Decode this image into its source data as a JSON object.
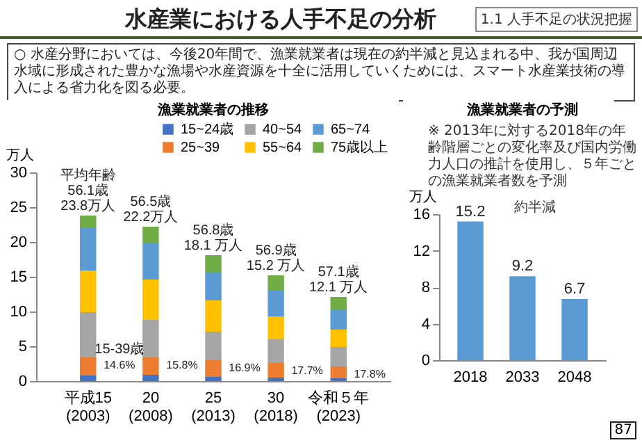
{
  "chart_data": [
    {
      "type": "other",
      "title": "水産業における人手不足の分析",
      "subtitle": "○ 水産分野においては、今後20年間で、漁業就業者は現在の約半減と見込まれる中、我が国周辺水域に形成された豊かな漁場や水産資源を十全に活用していくためには、スマート水産業技術の導入による省力化を図る必要。",
      "annotations": [
        "1.1 人手不足の状況把握",
        "87"
      ]
    },
    {
      "type": "bar",
      "title": "漁業就業者の推移",
      "ylabel": "万人",
      "stacked": true,
      "legend": "top right",
      "categories": [
        "平成15 (2003)",
        "20 (2008)",
        "25 (2013)",
        "30 (2018)",
        "令和５年 (2023)"
      ],
      "series": [
        {
          "name": "15~24歳",
          "color": "#4472c4",
          "values": [
            0.8,
            0.9,
            0.6,
            0.5,
            0.4
          ]
        },
        {
          "name": "25~39",
          "color": "#ed7d31",
          "values": [
            2.6,
            2.5,
            2.4,
            2.1,
            1.7
          ]
        },
        {
          "name": "40~54",
          "color": "#a5a5a5",
          "values": [
            6.5,
            5.4,
            4.1,
            3.4,
            2.8
          ]
        },
        {
          "name": "55~64",
          "color": "#ffc000",
          "values": [
            6.0,
            5.8,
            4.5,
            3.3,
            2.5
          ]
        },
        {
          "name": "65~74",
          "color": "#5b9bd5",
          "values": [
            6.2,
            5.3,
            4.1,
            3.8,
            2.9
          ]
        },
        {
          "name": "75歳以上",
          "color": "#70ad47",
          "values": [
            1.7,
            2.3,
            2.4,
            2.1,
            1.8
          ]
        }
      ],
      "ylim": [
        0,
        30
      ],
      "yticks": [
        0,
        5,
        10,
        15,
        20,
        25,
        30
      ],
      "annotations": [
        {
          "text": "平均年齢\n56.1歳\n23.8万人",
          "x": "平成15 (2003)",
          "y": 23.8
        },
        {
          "text": "56.5歳\n22.2万人",
          "x": "20 (2008)",
          "y": 22.2
        },
        {
          "text": "56.8歳\n18.1 万人",
          "x": "25 (2013)",
          "y": 18.1
        },
        {
          "text": "56.9歳\n15.2 万人",
          "x": "30 (2018)",
          "y": 15.2
        },
        {
          "text": "57.1歳\n12.1 万人",
          "x": "令和５年 (2023)",
          "y": 12.1
        },
        {
          "text": "15-39歳",
          "x": "平成15 (2003)",
          "y": 3.4
        },
        {
          "text": "14.6%",
          "x": "平成15 (2003)",
          "y": 3.4
        },
        {
          "text": "15.8%",
          "x": "20 (2008)",
          "y": 3.4
        },
        {
          "text": "16.9%",
          "x": "25 (2013)",
          "y": 3.0
        },
        {
          "text": "17.7%",
          "x": "30 (2018)",
          "y": 2.6
        },
        {
          "text": "17.8%",
          "x": "令和５年 (2023)",
          "y": 2.1
        }
      ]
    },
    {
      "type": "bar",
      "title": "漁業就業者の予測",
      "ylabel": "万人",
      "categories": [
        "2018",
        "2033",
        "2048"
      ],
      "series": [
        {
          "color": "#5b9bd5",
          "values": [
            15.2,
            9.2,
            6.7
          ]
        }
      ],
      "ylim": [
        0,
        16
      ],
      "yticks": [
        0,
        4,
        8,
        12,
        16
      ],
      "data_labels": true,
      "annotations": [
        "※ 2013年に対する2018年の年齢階層ごとの変化率及び国内労働力人口の推計を使用し、５年ごとの漁業就業者数を予測",
        "約半減"
      ]
    }
  ]
}
